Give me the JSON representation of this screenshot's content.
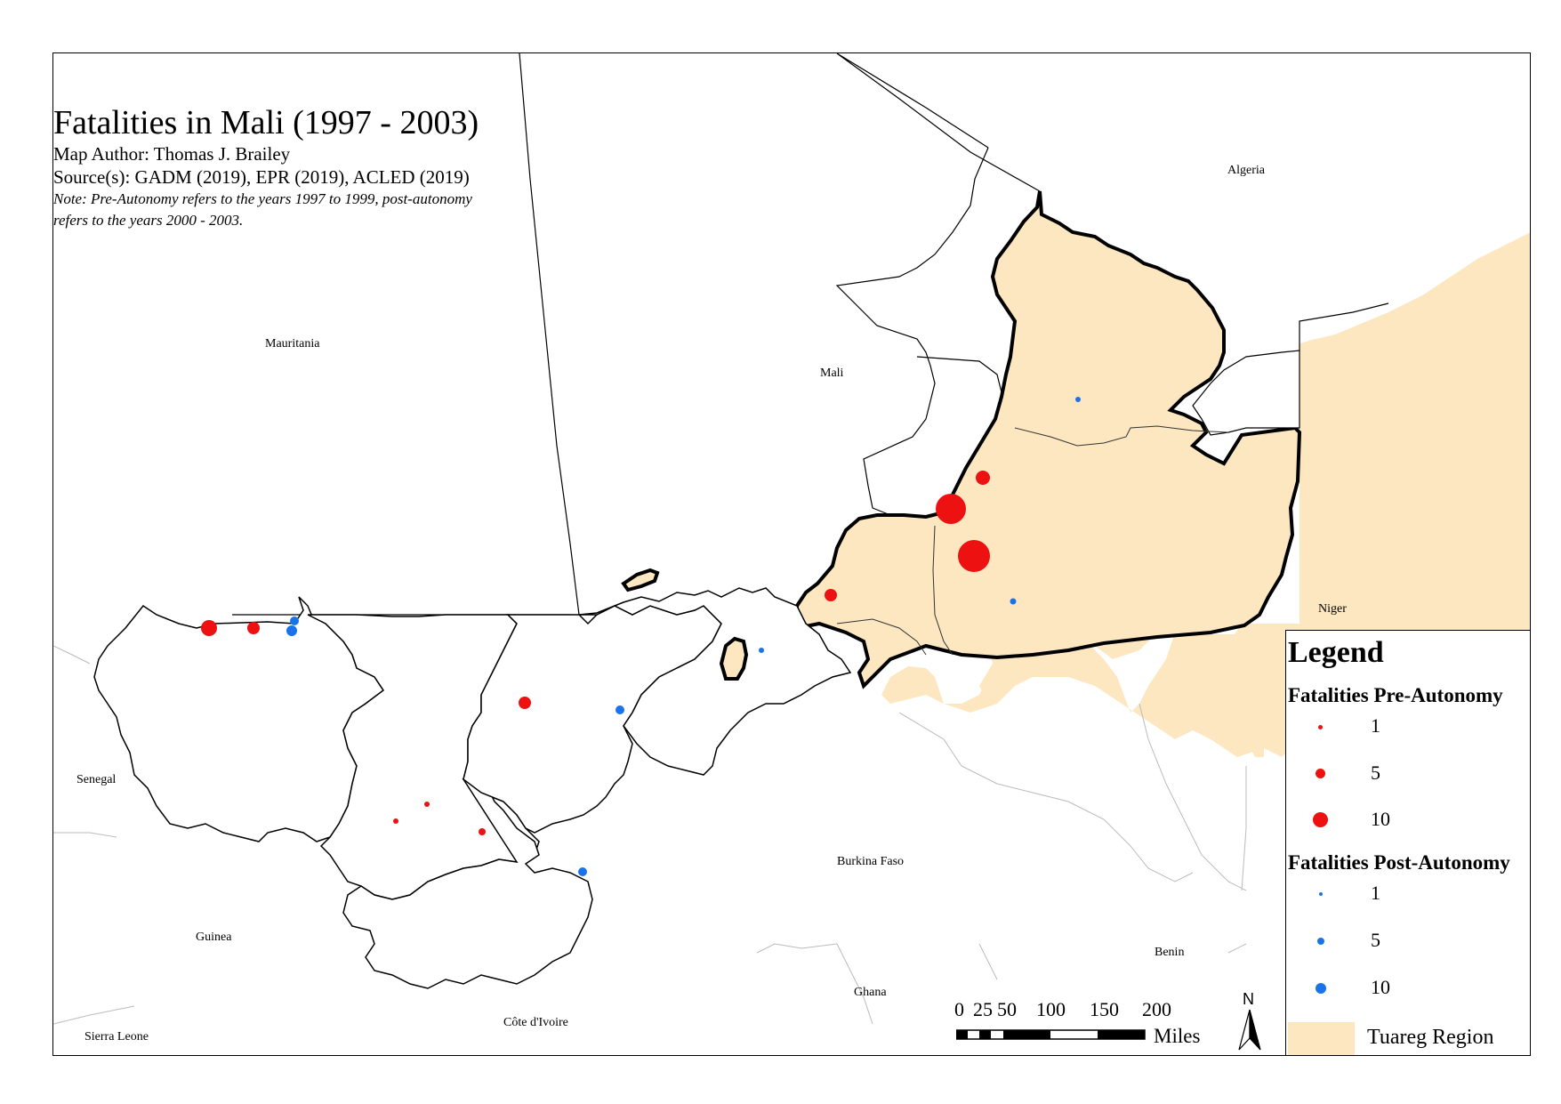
{
  "title": "Fatalities in Mali (1997 - 2003)",
  "author": "Map Author: Thomas J. Brailey",
  "sources": "Source(s): GADM (2019), EPR (2019), ACLED (2019)",
  "note": "Note: Pre-Autonomy refers to the years 1997 to 1999, post-autonomy refers to the years 2000 - 2003.",
  "country_labels": {
    "algeria": "Algeria",
    "mauritania": "Mauritania",
    "mali": "Mali",
    "niger": "Niger",
    "senegal": "Senegal",
    "burkina_faso": "Burkina Faso",
    "guinea": "Guinea",
    "benin": "Benin",
    "ghana": "Ghana",
    "cote_divoire": "Côte d'Ivoire",
    "sierra_leone": "Sierra Leone"
  },
  "legend": {
    "title": "Legend",
    "pre_title": "Fatalities Pre-Autonomy",
    "post_title": "Fatalities Post-Autonomy",
    "pre_items": [
      {
        "value": "1"
      },
      {
        "value": "5"
      },
      {
        "value": "10"
      }
    ],
    "post_items": [
      {
        "value": "1"
      },
      {
        "value": "5"
      },
      {
        "value": "10"
      }
    ],
    "tuareg_label": "Tuareg Region"
  },
  "colors": {
    "pre_autonomy": "#ee1111",
    "post_autonomy": "#1a73e8",
    "tuareg_region": "#fde7c0",
    "border": "#000000"
  },
  "scale_bar": {
    "ticks": [
      "0",
      "25",
      "50",
      "100",
      "150",
      "200"
    ],
    "units": "Miles"
  },
  "north_arrow": {
    "letter": "N"
  },
  "icons": {
    "north_arrow": "north-arrow-icon"
  }
}
